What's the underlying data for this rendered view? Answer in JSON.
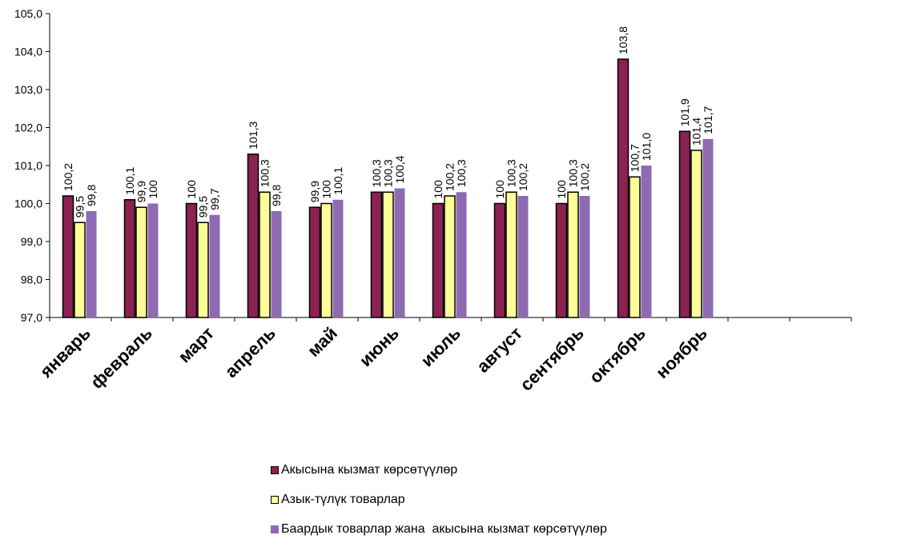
{
  "chart_data": {
    "type": "bar",
    "categories": [
      "январь",
      "февраль",
      "март",
      "апрель",
      "май",
      "июнь",
      "июль",
      "август",
      "сентябрь",
      "октябрь",
      "ноябрь",
      "",
      ""
    ],
    "series": [
      {
        "name": "Акысына кызмат көрсөтүүлөр",
        "color": "#8B2252",
        "values": [
          100.2,
          100.1,
          100.0,
          101.3,
          99.9,
          100.3,
          100.0,
          100.0,
          100.0,
          103.8,
          101.9,
          null,
          null
        ],
        "labels": [
          "100,2",
          "100,1",
          "100",
          "101,3",
          "99,9",
          "100,3",
          "100",
          "100",
          "100",
          "103,8",
          "101,9",
          "",
          ""
        ]
      },
      {
        "name": "Азык-түлүк товарлар",
        "color": "#FFFF99",
        "values": [
          99.5,
          99.9,
          99.5,
          100.3,
          100.0,
          100.3,
          100.2,
          100.3,
          100.3,
          100.7,
          101.4,
          null,
          null
        ],
        "labels": [
          "99,5",
          "99,9",
          "99,5",
          "100,3",
          "100",
          "100,3",
          "100,2",
          "100,3",
          "100,3",
          "100,7",
          "101,4",
          "",
          ""
        ]
      },
      {
        "name": "Баардык товарлар жана  акысына кызмат көрсөтүүлөр",
        "color": "#8E6BB0",
        "values": [
          99.8,
          100.0,
          99.7,
          99.8,
          100.1,
          100.4,
          100.3,
          100.2,
          100.2,
          101.0,
          101.7,
          null,
          null
        ],
        "labels": [
          "99,8",
          "100",
          "99,7",
          "99,8",
          "100,1",
          "100,4",
          "100,3",
          "100,2",
          "100,2",
          "101,0",
          "101,7",
          "",
          ""
        ]
      }
    ],
    "ylim": [
      97.0,
      105.0
    ],
    "yticks": [
      "97,0",
      "98,0",
      "99,0",
      "100,0",
      "101,0",
      "102,0",
      "103,0",
      "104,0",
      "105,0"
    ],
    "legend_position": "bottom"
  }
}
